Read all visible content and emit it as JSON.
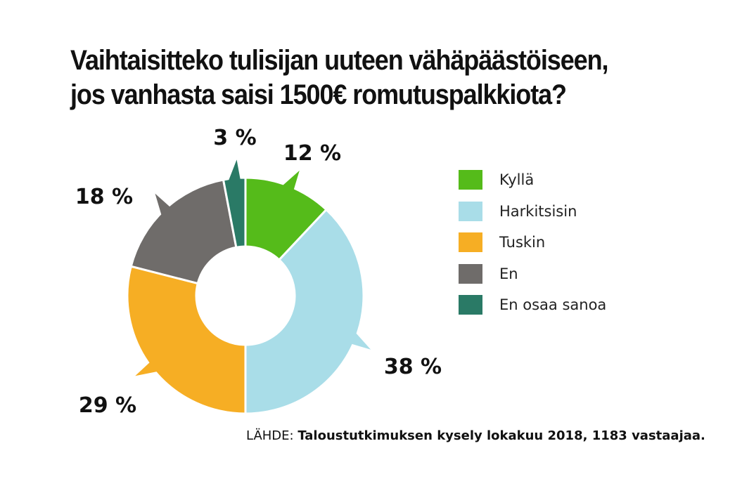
{
  "title": {
    "line1": "Vaihtaisitteko tulisijan uuteen vähäpäästöiseen,",
    "line2": "jos vanhasta saisi 1500€ romutuspalkkiota?"
  },
  "source": {
    "prefix": "LÄHDE: ",
    "text": "Taloustutkimuksen kysely lokakuu 2018, 1183 vastaajaa."
  },
  "chart_data": {
    "type": "pie",
    "variant": "donut",
    "title": "Vaihtaisitteko tulisijan uuteen vähäpäästöiseen, jos vanhasta saisi 1500€ romutuspalkkiota?",
    "categories": [
      "Kyllä",
      "Harkitsisin",
      "Tuskin",
      "En",
      "En osaa sanoa"
    ],
    "values": [
      12,
      38,
      29,
      18,
      3
    ],
    "labels": [
      "12 %",
      "38 %",
      "29 %",
      "18 %",
      "3 %"
    ],
    "colors": [
      "#55bb1a",
      "#a9dde8",
      "#f6ae24",
      "#6f6c6a",
      "#2a7a66"
    ],
    "unit": "%",
    "legend_position": "right",
    "start": "top, clockwise"
  }
}
